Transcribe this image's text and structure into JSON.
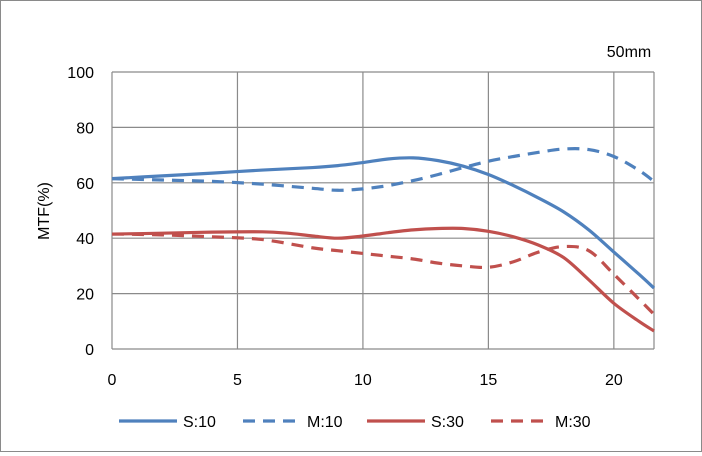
{
  "chart_data": {
    "type": "line",
    "title": "50mm",
    "xlabel": "",
    "ylabel": "MTF(%)",
    "xlim": [
      0,
      21.6
    ],
    "ylim": [
      0,
      100
    ],
    "xticks": [
      0,
      5,
      10,
      15,
      20
    ],
    "yticks": [
      0,
      20,
      40,
      60,
      80,
      100
    ],
    "grid": true,
    "legend_position": "bottom",
    "series": [
      {
        "name": "S:10",
        "color": "#4f81bd",
        "dash": "solid",
        "x": [
          0,
          2,
          4,
          6,
          8,
          9,
          10,
          11,
          12,
          13,
          14,
          15,
          16,
          17,
          18,
          19,
          20,
          21,
          21.6
        ],
        "y": [
          61.5,
          62.5,
          63.5,
          64.6,
          65.5,
          66.2,
          67.3,
          68.6,
          69.0,
          68.0,
          66.0,
          63.0,
          59.0,
          54.5,
          49.5,
          43.0,
          35.0,
          27.0,
          22.0
        ]
      },
      {
        "name": "M:10",
        "color": "#4f81bd",
        "dash": "dashed",
        "x": [
          0,
          2,
          4,
          6,
          8,
          9,
          10,
          11,
          12,
          13,
          14,
          15,
          16,
          17,
          18,
          19,
          20,
          21,
          21.6
        ],
        "y": [
          61.5,
          61.0,
          60.5,
          59.5,
          58.0,
          57.3,
          57.8,
          59.0,
          60.8,
          63.0,
          65.5,
          67.8,
          69.5,
          71.0,
          72.2,
          72.0,
          69.5,
          64.5,
          60.5
        ]
      },
      {
        "name": "S:30",
        "color": "#c0504d",
        "dash": "solid",
        "x": [
          0,
          2,
          4,
          6,
          7,
          8,
          9,
          10,
          11,
          12,
          13,
          14,
          15,
          16,
          17,
          18,
          19,
          20,
          21,
          21.6
        ],
        "y": [
          41.5,
          41.8,
          42.2,
          42.3,
          41.8,
          40.8,
          40.0,
          40.8,
          42.0,
          43.0,
          43.5,
          43.5,
          42.5,
          40.5,
          37.5,
          33.0,
          25.0,
          16.5,
          10.0,
          6.5
        ]
      },
      {
        "name": "M:30",
        "color": "#c0504d",
        "dash": "dashed",
        "x": [
          0,
          2,
          4,
          6,
          8,
          9,
          10,
          11,
          12,
          13,
          14,
          15,
          16,
          17,
          18,
          19,
          20,
          21,
          21.6
        ],
        "y": [
          41.5,
          41.2,
          40.5,
          39.5,
          36.5,
          35.5,
          34.5,
          33.5,
          32.5,
          31.0,
          30.0,
          29.5,
          31.5,
          35.0,
          37.0,
          35.5,
          27.0,
          18.0,
          12.5
        ]
      }
    ]
  }
}
